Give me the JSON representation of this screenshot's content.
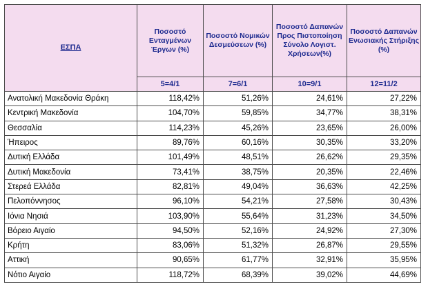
{
  "table": {
    "headers": [
      "ΕΣΠΑ",
      "Ποσοστό Ενταγμένων Έργων (%)",
      "Ποσοστό Νομικών Δεσμεύσεων (%)",
      "Ποσοστό Δαπανών Προς Πιστοποίηση Σύνολο Λογιστ. Χρήσεων(%)",
      "Ποσοστό Δαπανών Ενωσιακής Στήριξης (%)"
    ],
    "formulas": [
      "",
      "5=4/1",
      "7=6/1",
      "10=9/1",
      "12=11/2"
    ],
    "rows": [
      [
        "Ανατολική Μακεδονία Θράκη",
        "118,42%",
        "51,26%",
        "24,61%",
        "27,22%"
      ],
      [
        "Κεντρική Μακεδονία",
        "104,70%",
        "59,85%",
        "34,77%",
        "38,31%"
      ],
      [
        "Θεσσαλία",
        "114,23%",
        "45,26%",
        "23,65%",
        "26,00%"
      ],
      [
        "Ήπειρος",
        "89,76%",
        "60,16%",
        "30,35%",
        "33,20%"
      ],
      [
        "Δυτική Ελλάδα",
        "101,49%",
        "48,51%",
        "26,62%",
        "29,35%"
      ],
      [
        "Δυτική Μακεδονία",
        "73,41%",
        "38,75%",
        "20,35%",
        "22,46%"
      ],
      [
        "Στερεά Ελλάδα",
        "82,81%",
        "49,04%",
        "36,63%",
        "42,25%"
      ],
      [
        "Πελοπόννησος",
        "96,10%",
        "54,21%",
        "27,58%",
        "30,43%"
      ],
      [
        "Ιόνια Νησιά",
        "103,90%",
        "55,64%",
        "31,23%",
        "34,50%"
      ],
      [
        "Βόρειο Αιγαίο",
        "94,50%",
        "52,16%",
        "24,92%",
        "27,30%"
      ],
      [
        "Κρήτη",
        "83,06%",
        "51,32%",
        "26,87%",
        "29,55%"
      ],
      [
        "Αττική",
        "90,65%",
        "61,77%",
        "32,91%",
        "35,95%"
      ],
      [
        "Νότιο Αιγαίο",
        "118,72%",
        "68,39%",
        "39,02%",
        "44,69%"
      ]
    ]
  }
}
